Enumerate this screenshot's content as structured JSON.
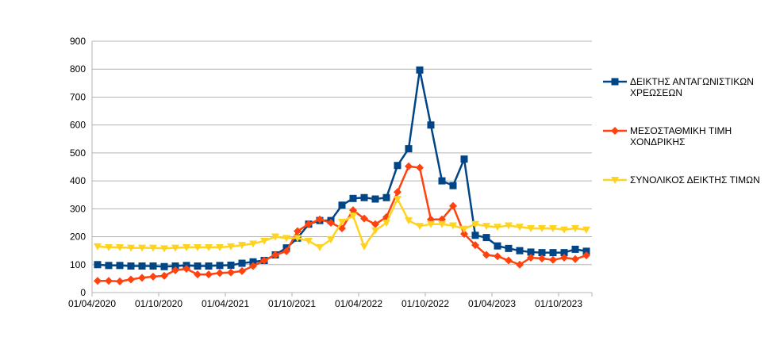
{
  "chart_data": {
    "type": "line",
    "title": "",
    "xlabel": "",
    "ylabel": "",
    "ylim": [
      0,
      900
    ],
    "y_ticks": [
      "0",
      "100",
      "200",
      "300",
      "400",
      "500",
      "600",
      "700",
      "800",
      "900"
    ],
    "x_tick_labels": [
      "01/04/2020",
      "01/10/2020",
      "01/04/2021",
      "01/10/2021",
      "01/04/2022",
      "01/10/2022",
      "01/04/2023",
      "01/10/2023"
    ],
    "grid": "horizontal",
    "legend_position": "right",
    "x_start": "01/04/2020",
    "x_step": "1 month",
    "series": [
      {
        "name": "ΔΕΙΚΤΗΣ ΑΝΤΑΓΩΝΙΣΤΙΚΩΝ ΧΡΕΩΣΕΩΝ",
        "color": "#004586",
        "marker": "square",
        "values": [
          100,
          97,
          97,
          95,
          95,
          95,
          93,
          95,
          97,
          95,
          95,
          97,
          98,
          105,
          110,
          115,
          135,
          160,
          195,
          245,
          258,
          258,
          313,
          337,
          340,
          335,
          340,
          455,
          515,
          797,
          600,
          400,
          383,
          478,
          205,
          197,
          167,
          158,
          150,
          145,
          143,
          143,
          143,
          155,
          148
        ]
      },
      {
        "name": "ΜΕΣΟΣΤΑΘΜΙΚΗ ΤΙΜΗ ΧΟΝΔΡΙΚΗΣ",
        "color": "#ff420e",
        "marker": "diamond",
        "values": [
          42,
          42,
          40,
          47,
          53,
          57,
          60,
          80,
          85,
          65,
          65,
          70,
          72,
          77,
          95,
          115,
          135,
          148,
          220,
          245,
          262,
          250,
          230,
          295,
          265,
          245,
          270,
          360,
          452,
          447,
          262,
          262,
          310,
          210,
          170,
          135,
          130,
          115,
          100,
          125,
          122,
          117,
          125,
          120,
          133
        ]
      },
      {
        "name": "ΣΥΝΟΛΙΚΟΣ ΔΕΙΚΤΗΣ ΤΙΜΩΝ",
        "color": "#ffd320",
        "marker": "triangle-down",
        "values": [
          165,
          162,
          162,
          160,
          160,
          160,
          158,
          160,
          162,
          162,
          162,
          162,
          165,
          170,
          175,
          185,
          200,
          195,
          195,
          185,
          162,
          190,
          253,
          275,
          165,
          222,
          250,
          335,
          258,
          238,
          245,
          245,
          240,
          228,
          245,
          238,
          235,
          240,
          235,
          230,
          230,
          230,
          225,
          230,
          225
        ]
      }
    ]
  }
}
